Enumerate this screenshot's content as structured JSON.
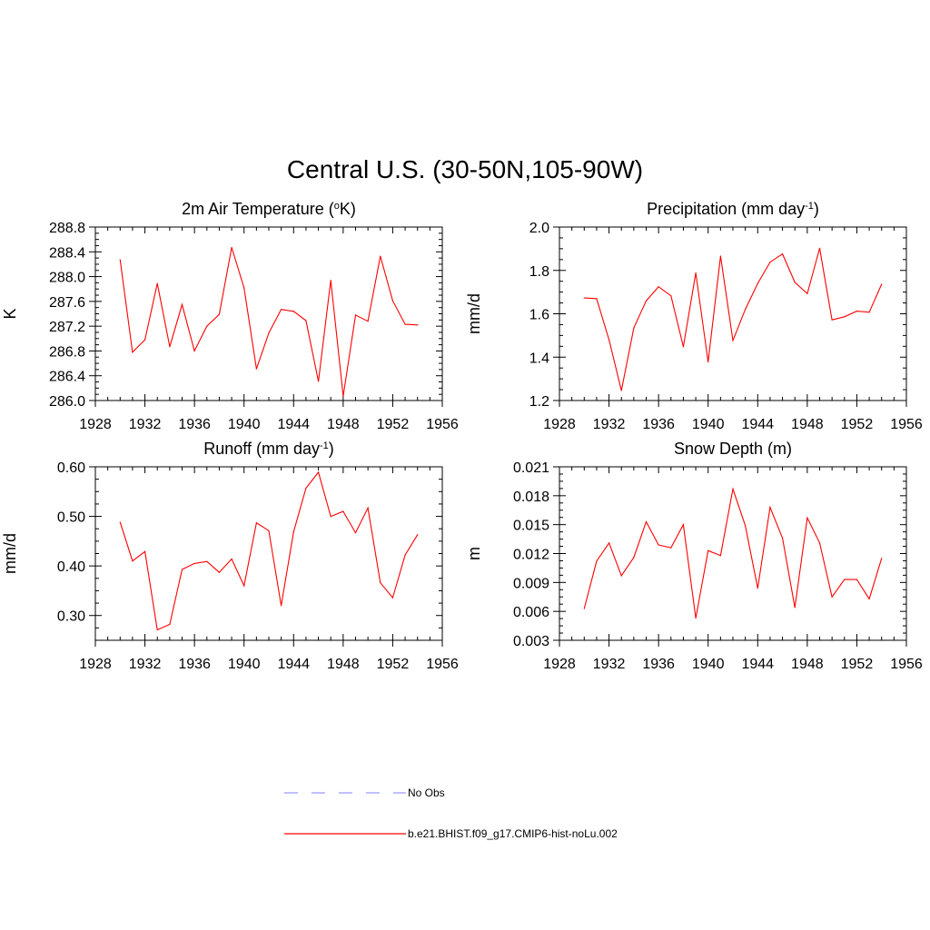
{
  "main_title": "Central U.S. (30-50N,105-90W)",
  "colors": {
    "model_line": "#ff0000",
    "obs_line": "#9999ff",
    "axis": "#000000"
  },
  "legend": [
    {
      "label": "No Obs",
      "style": "dashed",
      "color": "#9999ff"
    },
    {
      "label": "b.e21.BHIST.f09_g17.CMIP6-hist-noLu.002",
      "style": "solid",
      "color": "#ff0000"
    }
  ],
  "chart_data": [
    {
      "type": "line",
      "title": "2m Air Temperature (",
      "title_sup": "o",
      "title_suffix": "K)",
      "ylabel": "K",
      "xlabel": "",
      "xlim": [
        1928,
        1956
      ],
      "ylim": [
        286.0,
        288.8
      ],
      "xticks": [
        1928,
        1932,
        1936,
        1940,
        1944,
        1948,
        1952,
        1956
      ],
      "yticks": [
        "286.0",
        "286.4",
        "286.8",
        "287.2",
        "287.6",
        "288.0",
        "288.4",
        "288.8"
      ],
      "x": [
        1930,
        1931,
        1932,
        1933,
        1934,
        1935,
        1936,
        1937,
        1938,
        1939,
        1940,
        1941,
        1942,
        1943,
        1944,
        1945,
        1946,
        1947,
        1948,
        1949,
        1950,
        1951,
        1952,
        1953,
        1954
      ],
      "series": [
        {
          "values": [
            288.27,
            286.78,
            286.98,
            287.89,
            286.87,
            287.55,
            286.8,
            287.2,
            287.39,
            288.47,
            287.82,
            286.51,
            287.09,
            287.47,
            287.44,
            287.29,
            286.31,
            287.94,
            286.07,
            287.38,
            287.28,
            288.33,
            287.61,
            287.23,
            287.22
          ]
        }
      ]
    },
    {
      "type": "line",
      "title": "Precipitation (mm day",
      "title_sup": "-1",
      "title_suffix": ")",
      "ylabel": "mm/d",
      "xlabel": "",
      "xlim": [
        1928,
        1956
      ],
      "ylim": [
        1.2,
        2.0
      ],
      "xticks": [
        1928,
        1932,
        1936,
        1940,
        1944,
        1948,
        1952,
        1956
      ],
      "yticks": [
        "1.2",
        "1.4",
        "1.6",
        "1.8",
        "2.0"
      ],
      "x": [
        1930,
        1931,
        1932,
        1933,
        1934,
        1935,
        1936,
        1937,
        1938,
        1939,
        1940,
        1941,
        1942,
        1943,
        1944,
        1945,
        1946,
        1947,
        1948,
        1949,
        1950,
        1951,
        1952,
        1953,
        1954
      ],
      "series": [
        {
          "values": [
            1.673,
            1.67,
            1.48,
            1.246,
            1.535,
            1.66,
            1.725,
            1.683,
            1.448,
            1.788,
            1.378,
            1.866,
            1.477,
            1.62,
            1.74,
            1.838,
            1.876,
            1.745,
            1.693,
            1.902,
            1.572,
            1.586,
            1.612,
            1.607,
            1.736
          ]
        }
      ]
    },
    {
      "type": "line",
      "title": "Runoff (mm day",
      "title_sup": "-1",
      "title_suffix": ")",
      "ylabel": "mm/d",
      "xlabel": "",
      "xlim": [
        1928,
        1956
      ],
      "ylim": [
        0.25,
        0.6
      ],
      "xticks": [
        1928,
        1932,
        1936,
        1940,
        1944,
        1948,
        1952,
        1956
      ],
      "yticks": [
        "0.30",
        "0.40",
        "0.50",
        "0.60"
      ],
      "x": [
        1930,
        1931,
        1932,
        1933,
        1934,
        1935,
        1936,
        1937,
        1938,
        1939,
        1940,
        1941,
        1942,
        1943,
        1944,
        1945,
        1946,
        1947,
        1948,
        1949,
        1950,
        1951,
        1952,
        1953,
        1954
      ],
      "series": [
        {
          "values": [
            0.488,
            0.41,
            0.429,
            0.271,
            0.282,
            0.393,
            0.405,
            0.409,
            0.387,
            0.414,
            0.36,
            0.487,
            0.471,
            0.32,
            0.469,
            0.557,
            0.589,
            0.5,
            0.51,
            0.467,
            0.517,
            0.366,
            0.336,
            0.422,
            0.463
          ]
        }
      ]
    },
    {
      "type": "line",
      "title": "Snow Depth (m)",
      "title_sup": "",
      "title_suffix": "",
      "ylabel": "m",
      "xlabel": "",
      "xlim": [
        1928,
        1956
      ],
      "ylim": [
        0.003,
        0.021
      ],
      "xticks": [
        1928,
        1932,
        1936,
        1940,
        1944,
        1948,
        1952,
        1956
      ],
      "yticks": [
        "0.003",
        "0.006",
        "0.009",
        "0.012",
        "0.015",
        "0.018",
        "0.021"
      ],
      "x": [
        1930,
        1931,
        1932,
        1933,
        1934,
        1935,
        1936,
        1937,
        1938,
        1939,
        1940,
        1941,
        1942,
        1943,
        1944,
        1945,
        1946,
        1947,
        1948,
        1949,
        1950,
        1951,
        1952,
        1953,
        1954
      ],
      "series": [
        {
          "values": [
            0.0063,
            0.0112,
            0.0131,
            0.0097,
            0.0116,
            0.0153,
            0.0129,
            0.0126,
            0.015,
            0.0053,
            0.0123,
            0.0118,
            0.0187,
            0.0149,
            0.0084,
            0.0168,
            0.0136,
            0.0064,
            0.0157,
            0.0131,
            0.0075,
            0.0093,
            0.0093,
            0.0073,
            0.0115
          ]
        }
      ]
    }
  ]
}
